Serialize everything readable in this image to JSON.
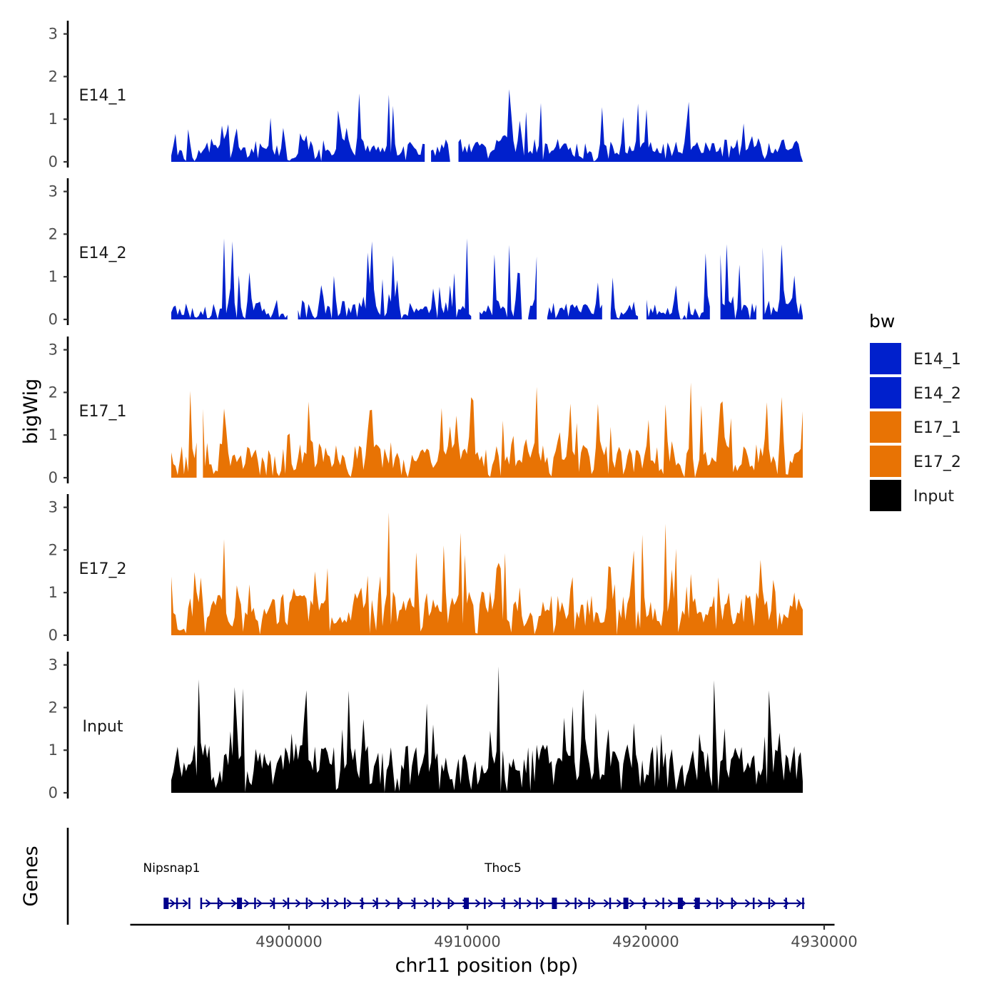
{
  "chart_data": {
    "type": "area",
    "chromosome": "chr11",
    "xlabel": "chr11 position (bp)",
    "ylabel": "bigWig",
    "genes_label": "Genes",
    "xlim": [
      4891500,
      4930500
    ],
    "data_range": [
      4893400,
      4928800
    ],
    "ylim": [
      0,
      3.2
    ],
    "x_ticks": [
      4900000,
      4910000,
      4920000,
      4930000
    ],
    "y_ticks": [
      0,
      1,
      2,
      3
    ],
    "legend": {
      "title": "bw",
      "position": "right",
      "entries": [
        {
          "name": "E14_1",
          "color": "#0020CC"
        },
        {
          "name": "E14_2",
          "color": "#0020CC"
        },
        {
          "name": "E17_1",
          "color": "#E87304"
        },
        {
          "name": "E17_2",
          "color": "#E87304"
        },
        {
          "name": "Input",
          "color": "#000000"
        }
      ]
    },
    "series": [
      {
        "name": "E14_1",
        "color": "#0020CC",
        "seed": 11,
        "mean": 0.45,
        "max": 1.7,
        "gap_rate": 0.12
      },
      {
        "name": "E14_2",
        "color": "#0020CC",
        "seed": 23,
        "mean": 0.38,
        "max": 1.9,
        "gap_rate": 0.2
      },
      {
        "name": "E17_1",
        "color": "#E87304",
        "seed": 37,
        "mean": 0.7,
        "max": 2.3,
        "gap_rate": 0.05
      },
      {
        "name": "E17_2",
        "color": "#E87304",
        "seed": 53,
        "mean": 0.85,
        "max": 2.9,
        "gap_rate": 0.05
      },
      {
        "name": "Input",
        "color": "#000000",
        "seed": 71,
        "mean": 0.95,
        "max": 3.1,
        "gap_rate": 0.0
      }
    ],
    "genes": [
      {
        "name": "Nipsnap1",
        "start": 4893100,
        "end": 4894300,
        "label_x": 4895300
      },
      {
        "name": "Thoc5",
        "start": 4895100,
        "end": 4928900,
        "label_x": 4912000
      }
    ],
    "gene_color": "#00008B"
  }
}
